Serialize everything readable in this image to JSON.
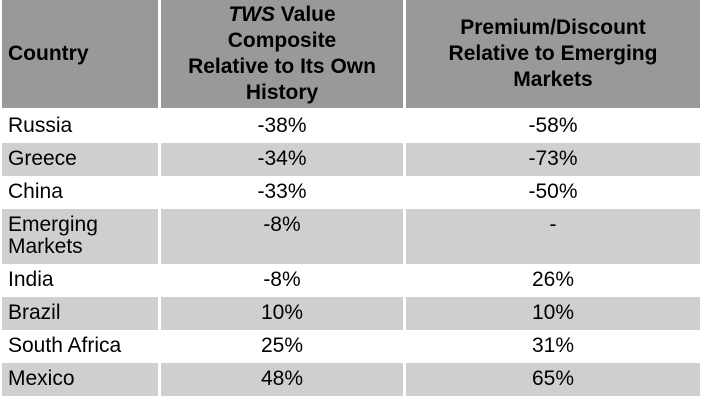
{
  "colors": {
    "header_bg": "#999999",
    "row_alt_bg": "#CFCFCF",
    "row_bg": "#FFFFFF",
    "text": "#000000"
  },
  "table": {
    "header": {
      "country_label": "Country",
      "col2": {
        "line1_italic": "TWS",
        "line1_rest": " Value",
        "line2": "Composite",
        "line3": "Relative to Its Own",
        "line4": "History"
      },
      "col3": {
        "line1": "Premium/Discount",
        "line2": "Relative to Emerging",
        "line3": "Markets"
      }
    },
    "rows": [
      {
        "country": "Russia",
        "tws_value": "-38%",
        "premium_discount": "-58%"
      },
      {
        "country": "Greece",
        "tws_value": "-34%",
        "premium_discount": "-73%"
      },
      {
        "country": "China",
        "tws_value": "-33%",
        "premium_discount": "-50%"
      },
      {
        "country": "Emerging Markets",
        "tws_value": "-8%",
        "premium_discount": "-"
      },
      {
        "country": "India",
        "tws_value": "-8%",
        "premium_discount": "26%"
      },
      {
        "country": "Brazil",
        "tws_value": "10%",
        "premium_discount": "10%"
      },
      {
        "country": "South Africa",
        "tws_value": "25%",
        "premium_discount": "31%"
      },
      {
        "country": "Mexico",
        "tws_value": "48%",
        "premium_discount": "65%"
      }
    ]
  },
  "chart_data": {
    "type": "table",
    "title": "",
    "columns": [
      "Country",
      "TWS Value Composite Relative to Its Own History",
      "Premium/Discount Relative to Emerging Markets"
    ],
    "rows": [
      [
        "Russia",
        "-38%",
        "-58%"
      ],
      [
        "Greece",
        "-34%",
        "-73%"
      ],
      [
        "China",
        "-33%",
        "-50%"
      ],
      [
        "Emerging Markets",
        "-8%",
        "-"
      ],
      [
        "India",
        "-8%",
        "26%"
      ],
      [
        "Brazil",
        "10%",
        "10%"
      ],
      [
        "South Africa",
        "25%",
        "31%"
      ],
      [
        "Mexico",
        "48%",
        "65%"
      ]
    ],
    "layout": {
      "header_background": "#999999",
      "zebra_striping": true,
      "stripe_color": "#CFCFCF",
      "column_alignment": [
        "left",
        "center",
        "center"
      ]
    }
  }
}
